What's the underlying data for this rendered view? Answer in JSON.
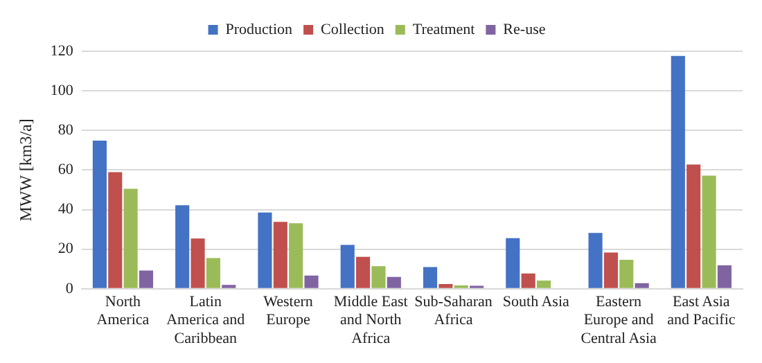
{
  "chart_data": {
    "type": "bar",
    "ylabel": "MWW [km3/a]",
    "categories": [
      "North America",
      "Latin America and Caribbean",
      "Western Europe",
      "Middle East and North Africa",
      "Sub-Saharan Africa",
      "South Asia",
      "Eastern Europe and Central Asia",
      "East Asia and Pacific"
    ],
    "series": [
      {
        "name": "Production",
        "color": "#4472c4",
        "values": [
          74.8,
          42.2,
          38.5,
          22.2,
          11.0,
          25.6,
          28.2,
          117.6
        ]
      },
      {
        "name": "Collection",
        "color": "#c0504d",
        "values": [
          58.9,
          25.4,
          33.8,
          16.1,
          2.4,
          7.7,
          18.3,
          62.8
        ]
      },
      {
        "name": "Treatment",
        "color": "#9bbb59",
        "values": [
          50.5,
          15.5,
          33.1,
          11.4,
          1.7,
          4.1,
          14.6,
          57.2
        ]
      },
      {
        "name": "Re-use",
        "color": "#8064a2",
        "values": [
          9.2,
          1.9,
          6.7,
          6.0,
          1.5,
          0,
          2.8,
          11.8
        ]
      }
    ],
    "ylim": [
      0,
      120
    ],
    "yticks": [
      0,
      20,
      40,
      60,
      80,
      100,
      120
    ],
    "grid": "y",
    "legend": "top"
  }
}
